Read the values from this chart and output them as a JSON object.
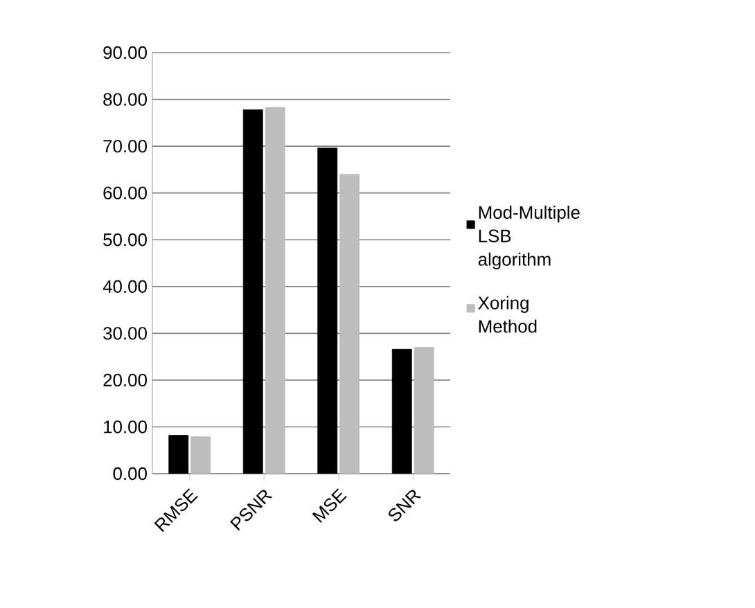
{
  "chart_data": {
    "type": "bar",
    "categories": [
      "RMSE",
      "PSNR",
      "MSE",
      "SNR"
    ],
    "series": [
      {
        "name": "Mod-Multiple LSB algorithm",
        "color": "#000000",
        "values": [
          8.2,
          77.8,
          69.6,
          26.6
        ]
      },
      {
        "name": "Xoring Method",
        "color": "#bdbdbd",
        "values": [
          7.9,
          78.3,
          64.0,
          27.0
        ]
      }
    ],
    "ylim": [
      0,
      90
    ],
    "yticks": [
      {
        "value": 0,
        "label": "0.00"
      },
      {
        "value": 10,
        "label": "10.00"
      },
      {
        "value": 20,
        "label": "20.00"
      },
      {
        "value": 30,
        "label": "30.00"
      },
      {
        "value": 40,
        "label": "40.00"
      },
      {
        "value": 50,
        "label": "50.00"
      },
      {
        "value": 60,
        "label": "60.00"
      },
      {
        "value": 70,
        "label": "70.00"
      },
      {
        "value": 80,
        "label": "80.00"
      },
      {
        "value": 90,
        "label": "90.00"
      }
    ],
    "grid": "y",
    "legend": "right"
  }
}
